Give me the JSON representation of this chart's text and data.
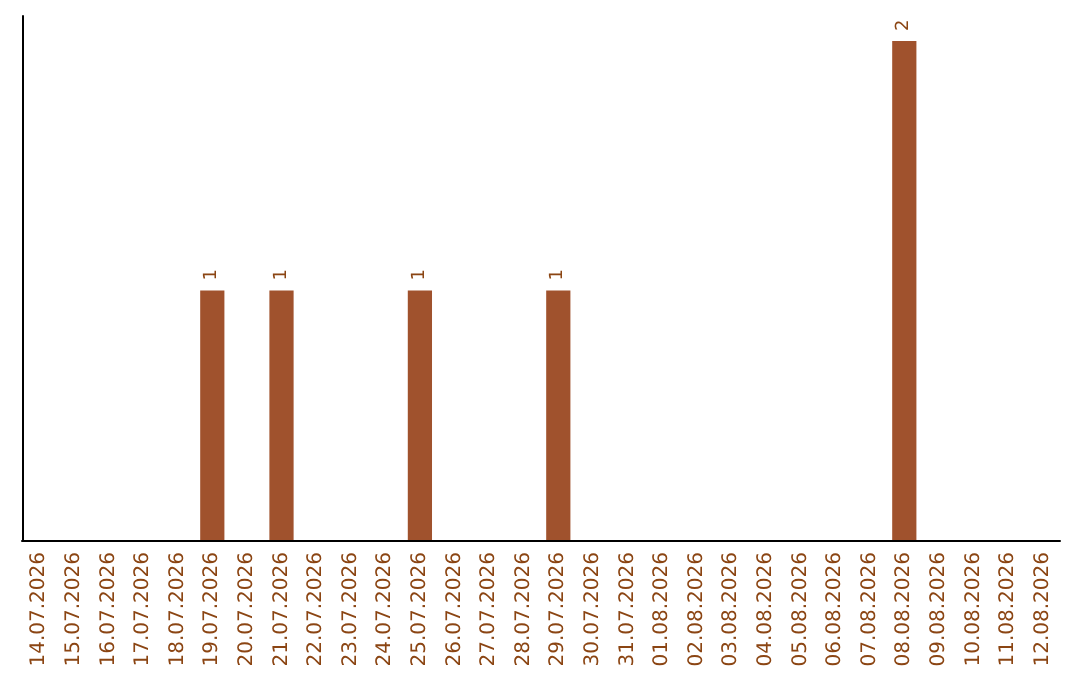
{
  "chart_data": {
    "type": "bar",
    "categories": [
      "14.07.2026",
      "15.07.2026",
      "16.07.2026",
      "17.07.2026",
      "18.07.2026",
      "19.07.2026",
      "20.07.2026",
      "21.07.2026",
      "22.07.2026",
      "23.07.2026",
      "24.07.2026",
      "25.07.2026",
      "26.07.2026",
      "27.07.2026",
      "28.07.2026",
      "29.07.2026",
      "30.07.2026",
      "31.07.2026",
      "01.08.2026",
      "02.08.2026",
      "03.08.2026",
      "04.08.2026",
      "05.08.2026",
      "06.08.2026",
      "07.08.2026",
      "08.08.2026",
      "09.08.2026",
      "10.08.2026",
      "11.08.2026",
      "12.08.2026"
    ],
    "values": [
      0,
      0,
      0,
      0,
      0,
      1,
      0,
      1,
      0,
      0,
      0,
      1,
      0,
      0,
      0,
      1,
      0,
      0,
      0,
      0,
      0,
      0,
      0,
      0,
      0,
      2,
      0,
      0,
      0,
      0
    ],
    "value_labels": [
      null,
      null,
      null,
      null,
      null,
      "1",
      null,
      "1",
      null,
      null,
      null,
      "1",
      null,
      null,
      null,
      "1",
      null,
      null,
      null,
      null,
      null,
      null,
      null,
      null,
      null,
      "2",
      null,
      null,
      null,
      null
    ],
    "color": "#a0522d"
  }
}
